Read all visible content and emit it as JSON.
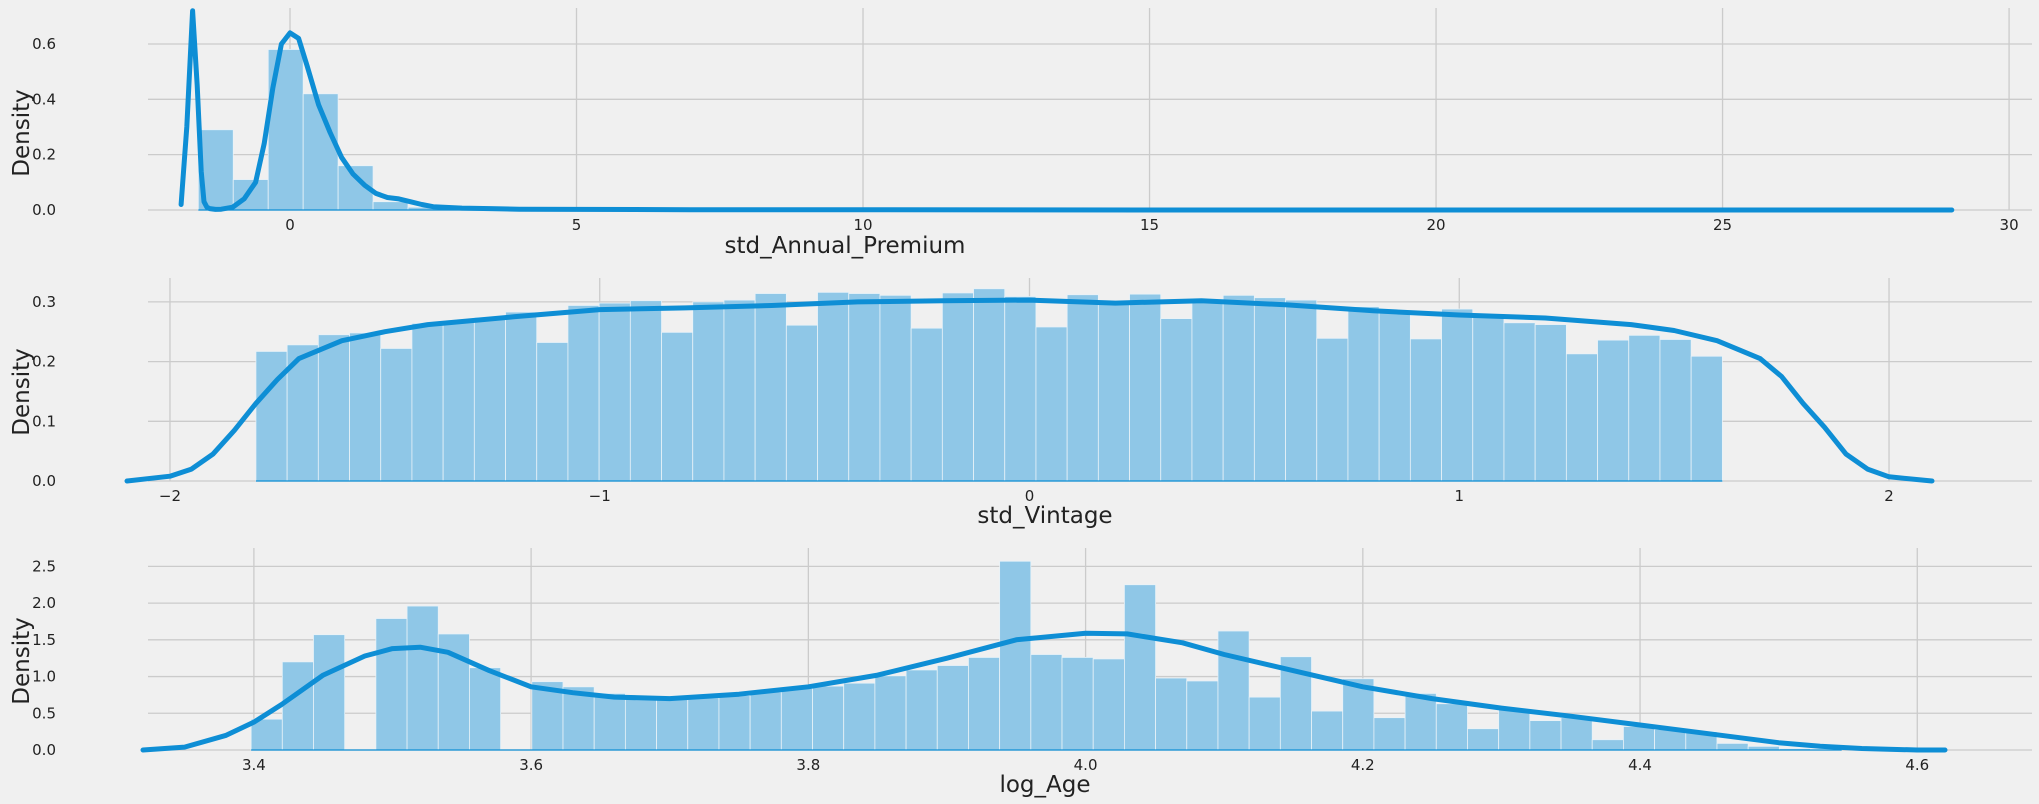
{
  "chart_data": [
    {
      "type": "histogram+kde",
      "xlabel": "std_Annual_Premium",
      "ylabel": "Density",
      "xlim": [
        -2.6,
        30.4
      ],
      "ylim": [
        0,
        0.73
      ],
      "xticks": [
        0,
        5,
        10,
        15,
        20,
        25,
        30
      ],
      "yticks": [
        0.0,
        0.2,
        0.4,
        0.6
      ],
      "grid": true,
      "bins": {
        "start": -1.6,
        "width": 0.61,
        "values": [
          0.29,
          0.11,
          0.58,
          0.42,
          0.16,
          0.03,
          0.01,
          0.005,
          0.002,
          0.001,
          0.001,
          0.001,
          0.001,
          0.001,
          0.001,
          0.001,
          0.001,
          0.001,
          0.001,
          0.001,
          0.001,
          0.001,
          0.001,
          0.001,
          0.001,
          0.001,
          0.001,
          0.001,
          0.001,
          0.001,
          0.001,
          0.001,
          0.001,
          0.001,
          0.001,
          0.001,
          0.001,
          0.001,
          0.001,
          0.001,
          0.001,
          0.001,
          0.001,
          0.001,
          0.001,
          0.001,
          0.001,
          0.001,
          0.001,
          0.001
        ]
      },
      "kde": {
        "x": [
          -1.9,
          -1.8,
          -1.7,
          -1.62,
          -1.55,
          -1.5,
          -1.45,
          -1.4,
          -1.3,
          -1.2,
          -1.0,
          -0.8,
          -0.6,
          -0.45,
          -0.3,
          -0.15,
          0.0,
          0.15,
          0.3,
          0.5,
          0.7,
          0.9,
          1.1,
          1.3,
          1.5,
          1.7,
          1.9,
          2.1,
          2.3,
          2.5,
          3.0,
          3.5,
          4.0,
          5.0,
          7.0,
          10.0,
          15.0,
          20.0,
          25.0,
          29.0
        ],
        "y": [
          0.02,
          0.3,
          0.72,
          0.45,
          0.14,
          0.03,
          0.01,
          0.005,
          0.002,
          0.003,
          0.01,
          0.04,
          0.1,
          0.24,
          0.44,
          0.6,
          0.64,
          0.62,
          0.52,
          0.38,
          0.28,
          0.19,
          0.13,
          0.09,
          0.06,
          0.045,
          0.04,
          0.03,
          0.02,
          0.012,
          0.007,
          0.005,
          0.003,
          0.002,
          0.001,
          0.001,
          0.0,
          0.0,
          0.0,
          0.0
        ]
      }
    },
    {
      "type": "histogram+kde",
      "xlabel": "std_Vintage",
      "ylabel": "Density",
      "xlim": [
        -2.1,
        2.1
      ],
      "ylim": [
        0,
        0.34
      ],
      "xticks": [
        -2,
        -1,
        0,
        1,
        2
      ],
      "yticks": [
        0.0,
        0.1,
        0.2,
        0.3
      ],
      "grid": true,
      "bins": {
        "start": -1.8,
        "width": 0.0726,
        "values": [
          0.217,
          0.228,
          0.245,
          0.248,
          0.222,
          0.264,
          0.267,
          0.274,
          0.283,
          0.232,
          0.294,
          0.298,
          0.302,
          0.249,
          0.3,
          0.303,
          0.314,
          0.261,
          0.316,
          0.314,
          0.311,
          0.256,
          0.315,
          0.322,
          0.309,
          0.258,
          0.312,
          0.301,
          0.313,
          0.272,
          0.304,
          0.311,
          0.307,
          0.303,
          0.239,
          0.292,
          0.283,
          0.238,
          0.288,
          0.279,
          0.265,
          0.262,
          0.213,
          0.236,
          0.244,
          0.237,
          0.209
        ]
      },
      "kde": {
        "x": [
          -2.1,
          -2.0,
          -1.95,
          -1.9,
          -1.85,
          -1.8,
          -1.75,
          -1.7,
          -1.6,
          -1.5,
          -1.4,
          -1.2,
          -1.0,
          -0.8,
          -0.6,
          -0.4,
          -0.2,
          0.0,
          0.2,
          0.4,
          0.6,
          0.8,
          1.0,
          1.2,
          1.4,
          1.5,
          1.6,
          1.7,
          1.75,
          1.8,
          1.85,
          1.9,
          1.95,
          2.0,
          2.1
        ],
        "y": [
          0.0,
          0.008,
          0.02,
          0.045,
          0.085,
          0.13,
          0.17,
          0.205,
          0.235,
          0.25,
          0.262,
          0.275,
          0.287,
          0.29,
          0.294,
          0.3,
          0.302,
          0.303,
          0.298,
          0.302,
          0.295,
          0.285,
          0.278,
          0.273,
          0.262,
          0.252,
          0.235,
          0.205,
          0.175,
          0.13,
          0.09,
          0.045,
          0.02,
          0.007,
          0.0
        ]
      }
    },
    {
      "type": "histogram+kde",
      "xlabel": "log_Age",
      "ylabel": "Density",
      "xlim": [
        3.32,
        4.62
      ],
      "ylim": [
        0,
        2.75
      ],
      "xticks": [
        3.4,
        3.6,
        3.8,
        4.0,
        4.2,
        4.4,
        4.6
      ],
      "yticks": [
        0.0,
        0.5,
        1.0,
        1.5,
        2.0,
        2.5
      ],
      "grid": true,
      "bins": {
        "start": 3.398,
        "width": 0.0225,
        "values": [
          0.42,
          1.2,
          1.57,
          0.0,
          1.79,
          1.96,
          1.58,
          1.12,
          0.0,
          0.93,
          0.86,
          0.77,
          0.7,
          0.7,
          0.71,
          0.74,
          0.79,
          0.84,
          0.87,
          0.91,
          1.01,
          1.09,
          1.15,
          1.26,
          2.57,
          1.3,
          1.26,
          1.24,
          2.25,
          0.98,
          0.94,
          1.62,
          0.72,
          1.27,
          0.53,
          0.97,
          0.44,
          0.77,
          0.63,
          0.29,
          0.55,
          0.4,
          0.44,
          0.14,
          0.32,
          0.28,
          0.25,
          0.09,
          0.05,
          0.02,
          0.01
        ]
      },
      "kde": {
        "x": [
          3.32,
          3.35,
          3.38,
          3.4,
          3.42,
          3.45,
          3.48,
          3.5,
          3.52,
          3.54,
          3.57,
          3.6,
          3.63,
          3.66,
          3.7,
          3.75,
          3.8,
          3.85,
          3.9,
          3.95,
          4.0,
          4.03,
          4.07,
          4.1,
          4.15,
          4.2,
          4.25,
          4.3,
          4.35,
          4.4,
          4.45,
          4.5,
          4.53,
          4.56,
          4.6,
          4.62
        ],
        "y": [
          0.0,
          0.04,
          0.2,
          0.38,
          0.62,
          1.02,
          1.28,
          1.38,
          1.4,
          1.33,
          1.08,
          0.86,
          0.78,
          0.72,
          0.7,
          0.76,
          0.86,
          1.02,
          1.25,
          1.5,
          1.59,
          1.58,
          1.46,
          1.3,
          1.08,
          0.86,
          0.7,
          0.57,
          0.46,
          0.34,
          0.22,
          0.1,
          0.05,
          0.02,
          0.0,
          0.0
        ]
      }
    }
  ]
}
